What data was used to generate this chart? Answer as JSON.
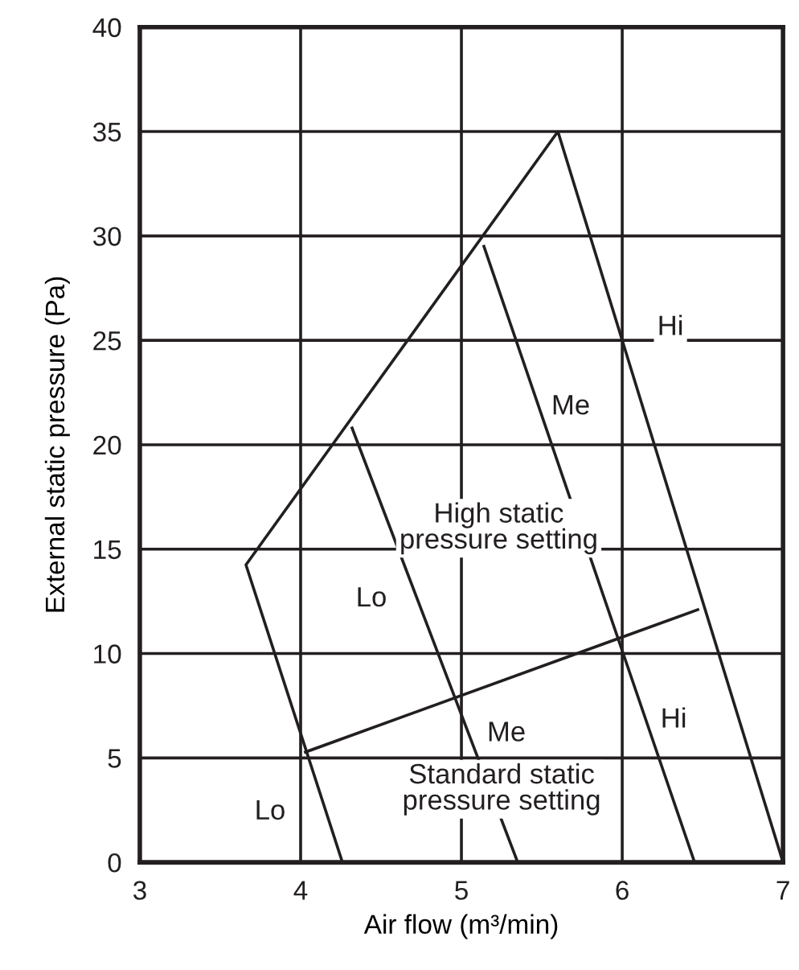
{
  "chart_data": {
    "type": "line",
    "xlabel": "Air flow (m³/min)",
    "ylabel": "External static pressure (Pa)",
    "series": [
      {
        "color": "#231f20",
        "x": [
          4.26,
          3.66,
          5.6,
          7.0
        ],
        "values": [
          0,
          14.25,
          35,
          0
        ]
      },
      {
        "color": "#231f20",
        "x": [
          4.03,
          6.47
        ],
        "values": [
          5.28,
          12.1
        ]
      },
      {
        "color": "#231f20",
        "x": [
          4.32,
          5.35
        ],
        "values": [
          20.8,
          0
        ]
      },
      {
        "color": "#231f20",
        "x": [
          5.14,
          6.45
        ],
        "values": [
          29.5,
          0
        ]
      }
    ],
    "annotations": [
      {
        "text": "Hi",
        "x": 6.3,
        "y": 25.6
      },
      {
        "text": "Me",
        "x": 5.68,
        "y": 21.8
      },
      "High static\npressure setting",
      {
        "text": "Lo",
        "x": 4.44,
        "y": 12.6
      },
      {
        "text": "Me",
        "x": 5.28,
        "y": 6.15
      },
      {
        "text": "Hi",
        "x": 6.32,
        "y": 6.8
      },
      "Standard static\npressure setting",
      {
        "text": "Lo",
        "x": 3.81,
        "y": 2.4
      }
    ],
    "xlim": [
      3,
      7
    ],
    "xticks": [
      3,
      4,
      5,
      6,
      7
    ],
    "ylim": [
      0,
      40
    ],
    "yticks": [
      0,
      5,
      10,
      15,
      20,
      25,
      30,
      35,
      40
    ],
    "grid": true,
    "marker": "none",
    "line_style": "solid"
  }
}
